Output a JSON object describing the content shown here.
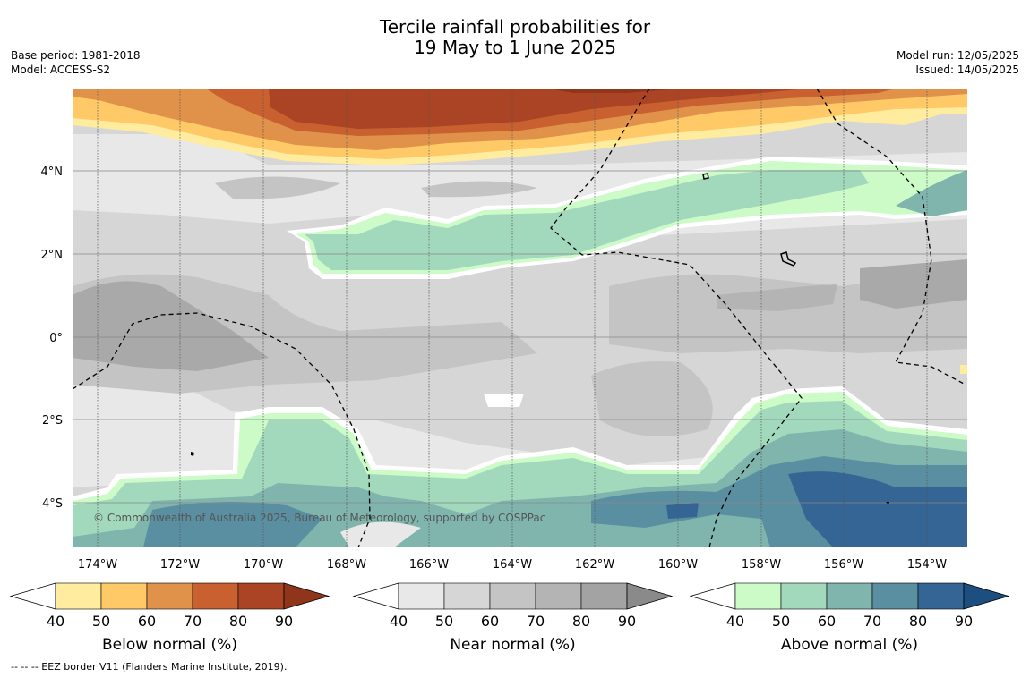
{
  "header": {
    "title_line1": "Tercile rainfall probabilities for",
    "title_line2": "19 May to 1 June 2025",
    "base_period": "Base period: 1981-2018",
    "model": "Model: ACCESS-S2",
    "model_run": "Model run: 12/05/2025",
    "issued": "Issued: 14/05/2025"
  },
  "map": {
    "credit": "© Commonwealth of Australia 2025, Bureau of Meteorology, supported by COSPPac",
    "lat_labels": [
      "4°N",
      "2°N",
      "0°",
      "2°S",
      "4°S"
    ],
    "lon_labels": [
      "174°W",
      "172°W",
      "170°W",
      "168°W",
      "166°W",
      "164°W",
      "162°W",
      "160°W",
      "158°W",
      "156°W",
      "154°W"
    ]
  },
  "legends": [
    {
      "title": "Below normal (%)",
      "ticks": [
        "40",
        "50",
        "60",
        "70",
        "80",
        "90"
      ],
      "colors": [
        "#ffffff",
        "#ffec9e",
        "#fec966",
        "#e0924a",
        "#c8602f",
        "#ab4424",
        "#8f3519"
      ]
    },
    {
      "title": "Near normal (%)",
      "ticks": [
        "40",
        "50",
        "60",
        "70",
        "80",
        "90"
      ],
      "colors": [
        "#ffffff",
        "#e8e8e8",
        "#d6d6d6",
        "#c4c4c4",
        "#b4b4b4",
        "#a3a3a3",
        "#8a8a8a"
      ]
    },
    {
      "title": "Above normal (%)",
      "ticks": [
        "40",
        "50",
        "60",
        "70",
        "80",
        "90"
      ],
      "colors": [
        "#ffffff",
        "#ccfbc8",
        "#a2d9bd",
        "#80b5ae",
        "#5a8fa1",
        "#346594",
        "#1c4e80"
      ]
    }
  ],
  "footnote": "--  --  -- EEZ border V11 (Flanders Marine Institute, 2019)."
}
